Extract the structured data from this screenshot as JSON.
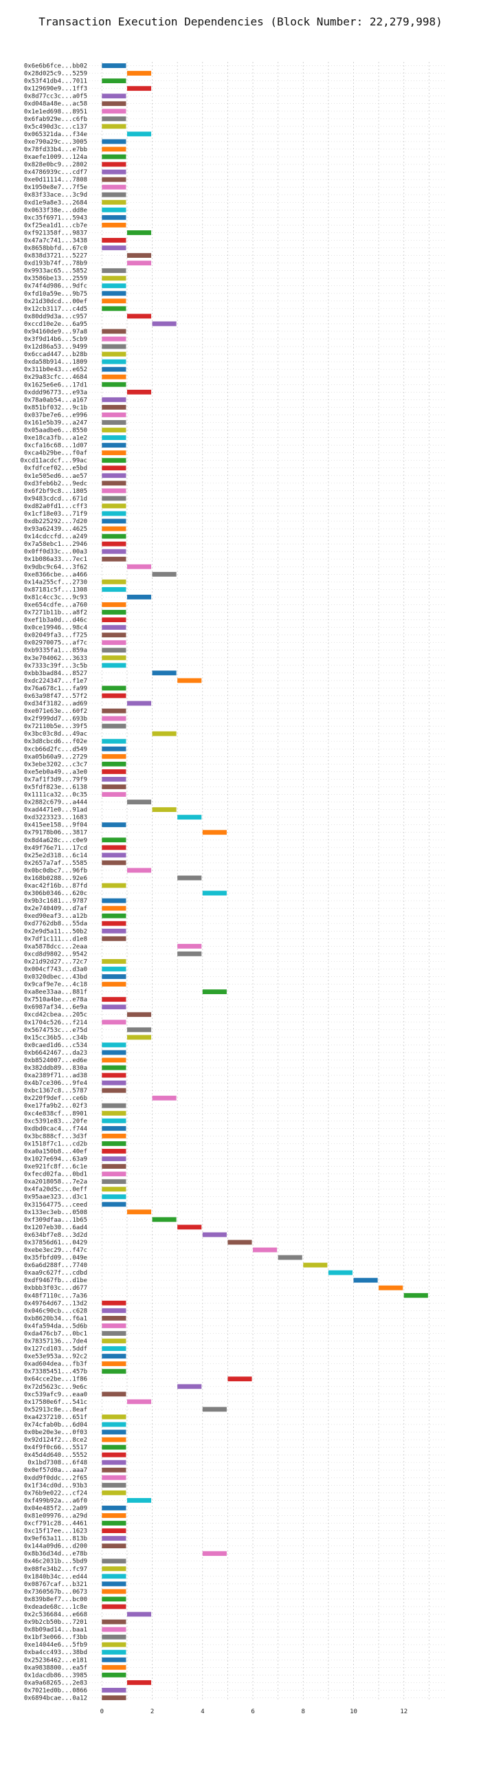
{
  "chart_data": {
    "type": "bar",
    "orientation": "horizontal",
    "title": "Transaction Execution Dependencies (Block Number: 22,279,998)",
    "xlabel": "",
    "ylabel": "",
    "xlim": [
      -0.5,
      13.7
    ],
    "xticks": [
      0,
      2,
      4,
      6,
      8,
      10,
      12
    ],
    "grid": true,
    "palette": [
      "#1f77b4",
      "#ff7f0e",
      "#2ca02c",
      "#d62728",
      "#9467bd",
      "#8c564b",
      "#e377c2",
      "#7f7f7f",
      "#bcbd22",
      "#17becf"
    ],
    "tx": [
      [
        "0x6e6b6fce...bb02",
        0
      ],
      [
        "0x28d025c9...5259",
        1
      ],
      [
        "0x53f41db4...7011",
        0
      ],
      [
        "0x129690e9...1ff3",
        1
      ],
      [
        "0x8d77cc3c...a0f5",
        0
      ],
      [
        "0xd048a48e...ac58",
        0
      ],
      [
        "0x1e1ed698...8951",
        0
      ],
      [
        "0x6fab929e...c6fb",
        0
      ],
      [
        "0x5c490d3c...c137",
        0
      ],
      [
        "0x065321da...f34e",
        1
      ],
      [
        "0xe790a29c...3005",
        0
      ],
      [
        "0x78fd33b4...e7bb",
        0
      ],
      [
        "0xaefe1009...124a",
        0
      ],
      [
        "0x828e0bc9...2802",
        0
      ],
      [
        "0x4786939c...cdf7",
        0
      ],
      [
        "0xe0d11114...7808",
        0
      ],
      [
        "0x1950e8e7...7f5e",
        0
      ],
      [
        "0x83f33ace...3c9d",
        0
      ],
      [
        "0xd1e9a8e3...2684",
        0
      ],
      [
        "0x0633f38e...dd8e",
        0
      ],
      [
        "0xc35f6971...5943",
        0
      ],
      [
        "0xf25ea1d1...cb7e",
        0
      ],
      [
        "0xf921358f...9837",
        1
      ],
      [
        "0x47a7c741...3438",
        0
      ],
      [
        "0x8658bbfd...67c0",
        0
      ],
      [
        "0x838d3721...5227",
        1
      ],
      [
        "0xd193b74f...78b9",
        1
      ],
      [
        "0x9933ac65...5852",
        0
      ],
      [
        "0x3586be13...2559",
        0
      ],
      [
        "0x74f4d986...9dfc",
        0
      ],
      [
        "0xfd10a59e...9b75",
        0
      ],
      [
        "0x21d30dcd...00ef",
        0
      ],
      [
        "0x12cb3117...c4d5",
        0
      ],
      [
        "0x80dd9d3a...c957",
        1
      ],
      [
        "0xccd10e2e...6a95",
        2
      ],
      [
        "0x94160de9...97a8",
        0
      ],
      [
        "0x3f9d14b6...5cb9",
        0
      ],
      [
        "0x12d86a53...9499",
        0
      ],
      [
        "0x6ccad447...b28b",
        0
      ],
      [
        "0xda58b914...1809",
        0
      ],
      [
        "0x311b0e43...e652",
        0
      ],
      [
        "0x29a83cfc...4684",
        0
      ],
      [
        "0x1625e6e6...17d1",
        0
      ],
      [
        "0xddd96773...e93a",
        1
      ],
      [
        "0x78a0ab54...a167",
        0
      ],
      [
        "0x851bf032...9c1b",
        0
      ],
      [
        "0x037be7e6...e996",
        0
      ],
      [
        "0x161e5b39...a247",
        0
      ],
      [
        "0x05aadbe6...8550",
        0
      ],
      [
        "0xe18ca3fb...a1e2",
        0
      ],
      [
        "0xcfa16c68...1d07",
        0
      ],
      [
        "0xca4b29be...f0af",
        0
      ],
      [
        "0xcd11acdcf...99ac",
        0
      ],
      [
        "0xfdfcef02...e5bd",
        0
      ],
      [
        "0x1e505ed6...ae57",
        0
      ],
      [
        "0xd3feb6b2...9edc",
        0
      ],
      [
        "0x6f2bf9c8...1805",
        0
      ],
      [
        "0x9483cdcd...671d",
        0
      ],
      [
        "0xd82a0fd1...cff3",
        0
      ],
      [
        "0x1cf18e03...71f9",
        0
      ],
      [
        "0xdb225292...7d20",
        0
      ],
      [
        "0x93a62439...4625",
        0
      ],
      [
        "0x14cdccfd...a249",
        0
      ],
      [
        "0x7a58ebc1...2946",
        0
      ],
      [
        "0x0ff0d33c...00a3",
        0
      ],
      [
        "0x1b086a33...7ec1",
        0
      ],
      [
        "0x9dbc9c64...3f62",
        1
      ],
      [
        "0xe8366cbe...a466",
        2
      ],
      [
        "0x14a255cf...2730",
        0
      ],
      [
        "0x87181c5f...1308",
        0
      ],
      [
        "0x81c4cc3c...9c93",
        1
      ],
      [
        "0xe654cdfe...a760",
        0
      ],
      [
        "0x7271b11b...a8f2",
        0
      ],
      [
        "0xef1b3a0d...d46c",
        0
      ],
      [
        "0x0ce19946...98c4",
        0
      ],
      [
        "0x02049fa3...f725",
        0
      ],
      [
        "0x02970075...af7c",
        0
      ],
      [
        "0xb9335fa1...859a",
        0
      ],
      [
        "0x3e704062...3633",
        0
      ],
      [
        "0x7333c39f...3c5b",
        0
      ],
      [
        "0xbb3bad84...8527",
        2
      ],
      [
        "0xdc224347...f1e7",
        3
      ],
      [
        "0x76a678c1...fa99",
        0
      ],
      [
        "0x63a98f47...57f2",
        0
      ],
      [
        "0xd34f3182...ad69",
        1
      ],
      [
        "0xe071e63e...60f2",
        0
      ],
      [
        "0x2f999dd7...693b",
        0
      ],
      [
        "0x72110b5e...39f5",
        0
      ],
      [
        "0x3bc03c8d...49ac",
        2
      ],
      [
        "0x3d8cbcd6...f02e",
        0
      ],
      [
        "0xcb66d2fc...d549",
        0
      ],
      [
        "0xa05b60a9...2729",
        0
      ],
      [
        "0x3ebe3202...c3c7",
        0
      ],
      [
        "0xe5eb0a49...a3e0",
        0
      ],
      [
        "0x7af1f3d9...79f9",
        0
      ],
      [
        "0x5fdf823e...6138",
        0
      ],
      [
        "0x1111ca32...0c35",
        0
      ],
      [
        "0x2882c679...a444",
        1
      ],
      [
        "0xad4471e0...91ad",
        2
      ],
      [
        "0xd3223323...1683",
        3
      ],
      [
        "0x415ee158...9f04",
        0
      ],
      [
        "0x79178b06...3817",
        4
      ],
      [
        "0x8d4a628c...c0e9",
        0
      ],
      [
        "0x49f76e71...17cd",
        0
      ],
      [
        "0x25e2d318...6c14",
        0
      ],
      [
        "0x2657a7af...5585",
        0
      ],
      [
        "0x0bc0dbc7...96fb",
        1
      ],
      [
        "0x168b0288...92e6",
        3
      ],
      [
        "0xac42f16b...87fd",
        0
      ],
      [
        "0x306b0346...620c",
        4
      ],
      [
        "0x9b3c1681...9787",
        0
      ],
      [
        "0x2e740409...d7af",
        0
      ],
      [
        "0xed90eaf3...a12b",
        0
      ],
      [
        "0xd7762db8...55da",
        0
      ],
      [
        "0x2e9d5a11...50b2",
        0
      ],
      [
        "0x7df1c111...d1e8",
        0
      ],
      [
        "0xa5878dcc...2eaa",
        3
      ],
      [
        "0xcd8d9802...9542",
        3
      ],
      [
        "0x21d92d27...72c7",
        0
      ],
      [
        "0x004cf743...d3a0",
        0
      ],
      [
        "0x0320dbec...43bd",
        0
      ],
      [
        "0x9caf9e7e...4c18",
        0
      ],
      [
        "0xa8ee33aa...881f",
        4
      ],
      [
        "0x7510a4be...e78a",
        0
      ],
      [
        "0x6987af34...6e9a",
        0
      ],
      [
        "0xcd42cbea...205c",
        1
      ],
      [
        "0x1704c526...f214",
        0
      ],
      [
        "0x5674753c...e75d",
        1
      ],
      [
        "0x15cc36b5...c34b",
        1
      ],
      [
        "0x0caed1d6...c534",
        0
      ],
      [
        "0xb6642467...da23",
        0
      ],
      [
        "0xb8524007...ed6e",
        0
      ],
      [
        "0x382ddb89...830a",
        0
      ],
      [
        "0xa2389f71...ad38",
        0
      ],
      [
        "0x4b7ce306...9fe4",
        0
      ],
      [
        "0xbc1367c8...5787",
        0
      ],
      [
        "0x220f9def...ce6b",
        2
      ],
      [
        "0xe17fa9b2...02f3",
        0
      ],
      [
        "0xc4e838cf...8901",
        0
      ],
      [
        "0xc5391e83...20fe",
        0
      ],
      [
        "0xdbd0cac4...f744",
        0
      ],
      [
        "0x3bc888cf...3d3f",
        0
      ],
      [
        "0x1518f7c1...cd2b",
        0
      ],
      [
        "0xa0a150b8...40ef",
        0
      ],
      [
        "0x1027e694...63a9",
        0
      ],
      [
        "0xe921fc8f...6c1e",
        0
      ],
      [
        "0xfecd02fa...0bd1",
        0
      ],
      [
        "0xa2018058...7e2a",
        0
      ],
      [
        "0x4fa20d5c...0eff",
        0
      ],
      [
        "0x95aae323...d3c1",
        0
      ],
      [
        "0x31564775...ceed",
        0
      ],
      [
        "0x133ec3eb...0508",
        1
      ],
      [
        "0xf309dfaa...1b65",
        2
      ],
      [
        "0x1207eb30...6ad4",
        3
      ],
      [
        "0x634bf7e8...3d2d",
        4
      ],
      [
        "0x37856d61...0429",
        5
      ],
      [
        "0xebe3ec29...f47c",
        6
      ],
      [
        "0x35fbfd09...049e",
        7
      ],
      [
        "0x6a6d288f...7740",
        8
      ],
      [
        "0xaa9c627f...cdbd",
        9
      ],
      [
        "0xdf9467fb...d1be",
        10
      ],
      [
        "0xbbb3f03c...d677",
        11
      ],
      [
        "0x48f7110c...7a36",
        12
      ],
      [
        "0x49764d67...13d2",
        0
      ],
      [
        "0x046c90cb...c628",
        0
      ],
      [
        "0xb8620b34...f6a1",
        0
      ],
      [
        "0x4fa594da...5d6b",
        0
      ],
      [
        "0xda476cb7...0bc1",
        0
      ],
      [
        "0x78357136...7de4",
        0
      ],
      [
        "0x127cd103...5ddf",
        0
      ],
      [
        "0xe53e953a...92c2",
        0
      ],
      [
        "0xad604dea...fb3f",
        0
      ],
      [
        "0x73385451...457b",
        0
      ],
      [
        "0x64cce2be...1f86",
        5
      ],
      [
        "0x72d5623c...9e6c",
        3
      ],
      [
        "0xc539afc9...eaa0",
        0
      ],
      [
        "0x17580e6f...541c",
        1
      ],
      [
        "0x52913c8e...8eaf",
        4
      ],
      [
        "0xa4237210...651f",
        0
      ],
      [
        "0x74cfab0b...6d04",
        0
      ],
      [
        "0x0be20e3e...0f03",
        0
      ],
      [
        "0x92d124f2...8ce2",
        0
      ],
      [
        "0x4f9f0c66...5517",
        0
      ],
      [
        "0x45d4d640...5552",
        0
      ],
      [
        "0x1bd7308...6f48",
        0
      ],
      [
        "0x0ef57d0a...aaa7",
        0
      ],
      [
        "0xdd9f0ddc...2f65",
        0
      ],
      [
        "0x1f34cd0d...93b3",
        0
      ],
      [
        "0x76b9e022...cf24",
        0
      ],
      [
        "0xf499b92a...a6f0",
        1
      ],
      [
        "0x04e485f2...2a09",
        0
      ],
      [
        "0x81e09976...a29d",
        0
      ],
      [
        "0xcf791c28...4461",
        0
      ],
      [
        "0xc15f17ee...1623",
        0
      ],
      [
        "0x9ef63a11...813b",
        0
      ],
      [
        "0x144a09d6...d200",
        0
      ],
      [
        "0x8b36d34d...e78b",
        4
      ],
      [
        "0x46c2031b...5bd9",
        0
      ],
      [
        "0x08fe34b2...fc97",
        0
      ],
      [
        "0x1840b34c...ed44",
        0
      ],
      [
        "0x08767caf...b321",
        0
      ],
      [
        "0x7360567b...0673",
        0
      ],
      [
        "0x839b8ef7...bc00",
        0
      ],
      [
        "0xdeade68c...1c8e",
        0
      ],
      [
        "0x2c536684...e668",
        1
      ],
      [
        "0x9b2cb50b...7201",
        0
      ],
      [
        "0x8b09ad14...baa1",
        0
      ],
      [
        "0x1bf3e066...f3bb",
        0
      ],
      [
        "0xe14044e6...5fb9",
        0
      ],
      [
        "0xba4cc493...38bd",
        0
      ],
      [
        "0x25236462...e181",
        0
      ],
      [
        "0xa9838800...ea5f",
        0
      ],
      [
        "0x1dacdb86...3985",
        0
      ],
      [
        "0xa9a68265...2e83",
        1
      ],
      [
        "0x7021ed0b...0866",
        0
      ],
      [
        "0x6894bcae...0a12",
        0
      ]
    ]
  }
}
